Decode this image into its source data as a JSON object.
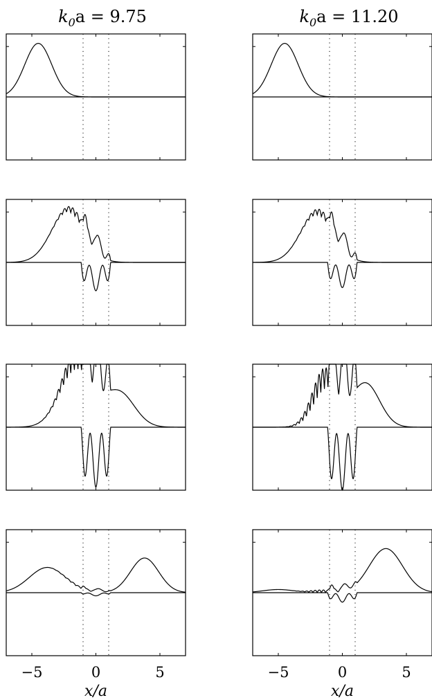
{
  "chart_data": {
    "type": "line",
    "figure": "grid of 4 rows x 2 columns of wave-packet snapshots",
    "columns": [
      {
        "title_main": "k",
        "title_sub": "0",
        "title_rest": "a = 9.75"
      },
      {
        "title_main": "k",
        "title_sub": "0",
        "title_rest": "a = 11.20"
      }
    ],
    "xlabel": "x/a",
    "xlim": [
      -7,
      7
    ],
    "xticks": [
      -5,
      0,
      5
    ],
    "xtick_labels": [
      "−5",
      "0",
      "5"
    ],
    "ylim": [
      -1,
      1
    ],
    "barrier_lines_x": [
      -1,
      1
    ],
    "grid": false,
    "legend": "none",
    "series_per_panel": [
      "upper envelope (probability density)",
      "lower trace (real part)"
    ],
    "panels": [
      {
        "row": 0,
        "col": 0,
        "packets": [
          {
            "x0": -4.5,
            "amp": 0.85,
            "w": 1.05
          }
        ],
        "barrier": {
          "amp": 0.0,
          "k": 0,
          "neg": 0
        }
      },
      {
        "row": 0,
        "col": 1,
        "packets": [
          {
            "x0": -4.5,
            "amp": 0.85,
            "w": 1.05
          }
        ],
        "barrier": {
          "amp": 0.0,
          "k": 0,
          "neg": 0
        }
      },
      {
        "row": 1,
        "col": 0,
        "packets": [
          {
            "x0": -2.2,
            "amp": 0.8,
            "w": 1.3
          }
        ],
        "barrier": {
          "amp": 0.3,
          "k": 6,
          "neg": 0.45
        }
      },
      {
        "row": 1,
        "col": 1,
        "packets": [
          {
            "x0": -2.0,
            "amp": 0.75,
            "w": 1.3
          }
        ],
        "barrier": {
          "amp": 0.3,
          "k": 6,
          "neg": 0.4
        }
      },
      {
        "row": 2,
        "col": 0,
        "packets": [
          {
            "x0": 1.8,
            "amp": 0.55,
            "w": 1.2
          },
          {
            "x0": -1.5,
            "amp": 0.9,
            "w": 1.3
          }
        ],
        "barrier": {
          "amp": 0.9,
          "k": 7,
          "neg": 0.95
        }
      },
      {
        "row": 2,
        "col": 1,
        "packets": [
          {
            "x0": 1.8,
            "amp": 0.7,
            "w": 1.1
          },
          {
            "x0": -1.2,
            "amp": 0.6,
            "w": 1.0
          }
        ],
        "barrier": {
          "amp": 1.0,
          "k": 7,
          "neg": 1.0
        }
      },
      {
        "row": 3,
        "col": 0,
        "packets": [
          {
            "x0": -3.8,
            "amp": 0.4,
            "w": 1.4
          },
          {
            "x0": 3.8,
            "amp": 0.55,
            "w": 1.1
          }
        ],
        "barrier": {
          "amp": 0.06,
          "k": 5,
          "neg": 0.05
        }
      },
      {
        "row": 3,
        "col": 1,
        "packets": [
          {
            "x0": -5.0,
            "amp": 0.05,
            "w": 1.2
          },
          {
            "x0": 3.4,
            "amp": 0.7,
            "w": 1.3
          }
        ],
        "barrier": {
          "amp": 0.12,
          "k": 6,
          "neg": 0.15
        }
      }
    ]
  }
}
